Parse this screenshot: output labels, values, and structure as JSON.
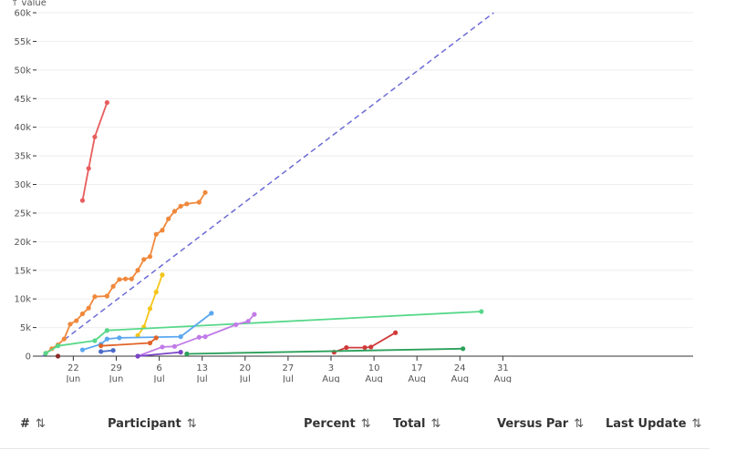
{
  "chart_data": {
    "type": "line",
    "ylabel": "↑ value",
    "ylim": [
      0,
      60000
    ],
    "yticks": [
      0,
      5000,
      10000,
      15000,
      20000,
      25000,
      30000,
      35000,
      40000,
      45000,
      50000,
      55000,
      60000
    ],
    "ytick_labels": [
      "0",
      "5k",
      "10k",
      "15k",
      "20k",
      "25k",
      "30k",
      "35k",
      "40k",
      "45k",
      "50k",
      "55k",
      "60k"
    ],
    "x_unit": "day-of-year",
    "xlim": [
      136,
      243
    ],
    "xticks": [
      {
        "value": 142,
        "label1": "22",
        "label2": "Jun"
      },
      {
        "value": 149,
        "label1": "29",
        "label2": "Jun"
      },
      {
        "value": 156,
        "label1": "6",
        "label2": "Jul"
      },
      {
        "value": 163,
        "label1": "13",
        "label2": "Jul"
      },
      {
        "value": 170,
        "label1": "20",
        "label2": "Jul"
      },
      {
        "value": 177,
        "label1": "27",
        "label2": "Jul"
      },
      {
        "value": 184,
        "label1": "3",
        "label2": "Aug"
      },
      {
        "value": 191,
        "label1": "10",
        "label2": "Aug"
      },
      {
        "value": 198,
        "label1": "17",
        "label2": "Aug"
      },
      {
        "value": 205,
        "label1": "24",
        "label2": "Aug"
      },
      {
        "value": 212,
        "label1": "31",
        "label2": "Aug"
      }
    ],
    "par_line": {
      "color": "#6b6bd6",
      "x": [
        137,
        210.5
      ],
      "y": [
        0,
        60000
      ]
    },
    "series": [
      {
        "color": "#e85d5d",
        "x": [
          143.5,
          144.5,
          145.5,
          147.5
        ],
        "y": [
          27200,
          32800,
          38300,
          44300
        ]
      },
      {
        "color": "#f0883b",
        "x": [
          137.5,
          138.5,
          139.5,
          140.5,
          141.5,
          142.5,
          143.5,
          144.5,
          145.5,
          147.5,
          148.5,
          149.5,
          150.5,
          151.5,
          152.5,
          153.5,
          154.5,
          155.5,
          156.5,
          157.5,
          158.5,
          159.5,
          160.5,
          162.5,
          163.5
        ],
        "y": [
          500,
          1300,
          2000,
          3000,
          5600,
          6200,
          7400,
          8400,
          10400,
          10500,
          12200,
          13400,
          13500,
          13500,
          15000,
          16900,
          17400,
          21300,
          22000,
          24000,
          25300,
          26200,
          26600,
          26900,
          28600
        ]
      },
      {
        "color": "#f5c518",
        "x": [
          152.5,
          153.5,
          154.5,
          155.5,
          156.5
        ],
        "y": [
          3600,
          5100,
          8300,
          11200,
          14200
        ]
      },
      {
        "color": "#56d889",
        "x": [
          137.5,
          139.5,
          145.5,
          147.5,
          208.5
        ],
        "y": [
          500,
          1800,
          2700,
          4500,
          7800
        ]
      },
      {
        "color": "#5aa7f0",
        "x": [
          143.5,
          146.5,
          147.5,
          149.5,
          159.5,
          164.5
        ],
        "y": [
          1100,
          2100,
          3000,
          3200,
          3400,
          7500
        ]
      },
      {
        "color": "#c17be8",
        "x": [
          152.5,
          156.5,
          158.5,
          162.5,
          163.5,
          168.5,
          170.5,
          171.5
        ],
        "y": [
          0,
          1600,
          1700,
          3300,
          3400,
          5500,
          6100,
          7300
        ]
      },
      {
        "color": "#e0632a",
        "x": [
          146.5,
          154.5,
          155.5
        ],
        "y": [
          1800,
          2300,
          3200
        ]
      },
      {
        "color": "#4a69c8",
        "x": [
          146.5,
          148.5
        ],
        "y": [
          800,
          1000
        ]
      },
      {
        "color": "#7b45c7",
        "x": [
          152.5,
          159.5
        ],
        "y": [
          0,
          700
        ]
      },
      {
        "color": "#d03a3a",
        "x": [
          184.5,
          186.5,
          189.5,
          190.5,
          194.5
        ],
        "y": [
          700,
          1500,
          1500,
          1600,
          4100
        ]
      },
      {
        "color": "#2ba05a",
        "x": [
          160.5,
          205.5
        ],
        "y": [
          400,
          1300
        ]
      },
      {
        "color": "#8b2b2b",
        "x": [
          139.5
        ],
        "y": [
          0
        ]
      }
    ]
  },
  "table": {
    "columns": [
      {
        "label": "#",
        "sort_icon": "⇅"
      },
      {
        "label": "Participant",
        "sort_icon": "⇅"
      },
      {
        "label": "Percent",
        "sort_icon": "⇅"
      },
      {
        "label": "Total",
        "sort_icon": "⇅"
      },
      {
        "label": "Versus Par",
        "sort_icon": "⇅"
      },
      {
        "label": "Last Update",
        "sort_icon": "⇅"
      }
    ]
  }
}
